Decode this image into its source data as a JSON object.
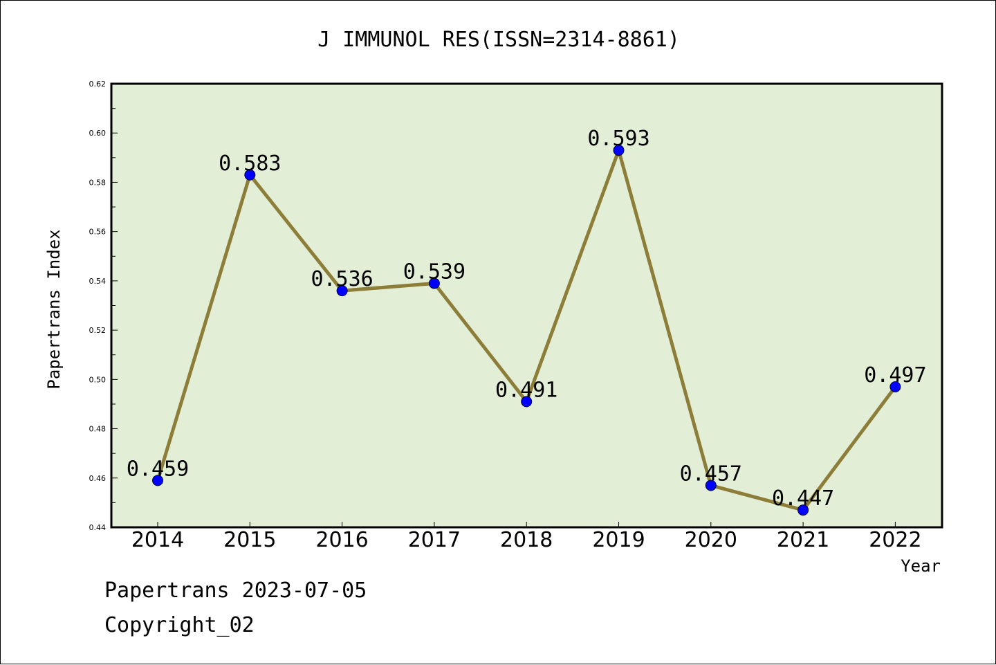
{
  "chart_data": {
    "type": "line",
    "title": "J IMMUNOL RES(ISSN=2314-8861)",
    "xlabel": "Year",
    "ylabel": "Papertrans Index",
    "categories": [
      "2014",
      "2015",
      "2016",
      "2017",
      "2018",
      "2019",
      "2020",
      "2021",
      "2022"
    ],
    "values": [
      0.459,
      0.583,
      0.536,
      0.539,
      0.491,
      0.593,
      0.457,
      0.447,
      0.497
    ],
    "data_labels": [
      "0.459",
      "0.583",
      "0.536",
      "0.539",
      "0.491",
      "0.593",
      "0.457",
      "0.447",
      "0.497"
    ],
    "ylim": [
      0.44,
      0.62
    ],
    "y_ticks": [
      "0.44",
      "0.46",
      "0.48",
      "0.50",
      "0.52",
      "0.54",
      "0.56",
      "0.58",
      "0.60",
      "0.62"
    ],
    "grid": false,
    "colors": {
      "plot_background": "#e2efd6",
      "line": "#8c7d38",
      "marker": "#0000ff"
    }
  },
  "footer": {
    "line1": "Papertrans 2023-07-05",
    "line2": "Copyright_02"
  }
}
